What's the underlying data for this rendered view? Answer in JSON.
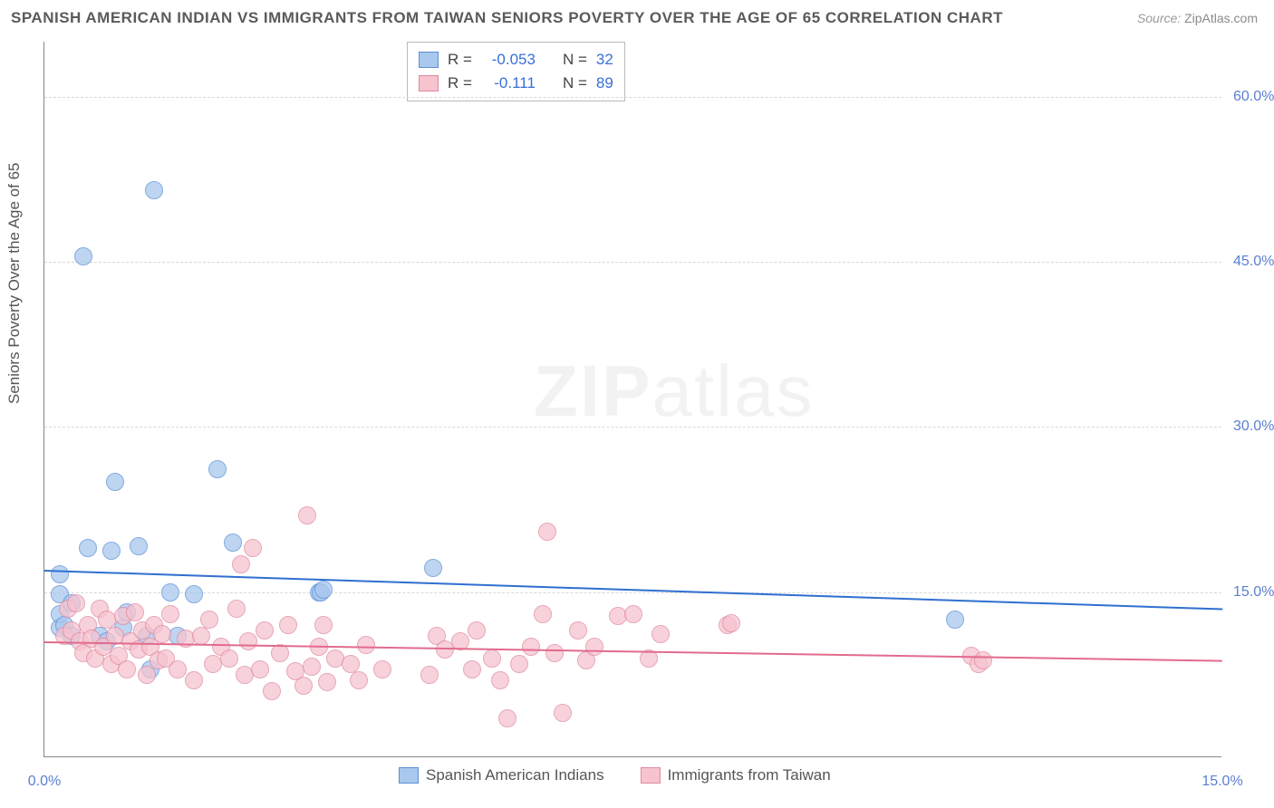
{
  "title": "SPANISH AMERICAN INDIAN VS IMMIGRANTS FROM TAIWAN SENIORS POVERTY OVER THE AGE OF 65 CORRELATION CHART",
  "source_label": "Source:",
  "source_value": "ZipAtlas.com",
  "y_axis_title": "Seniors Poverty Over the Age of 65",
  "watermark_a": "ZIP",
  "watermark_b": "atlas",
  "chart": {
    "type": "scatter",
    "background_color": "#ffffff",
    "grid_color": "#d8d8d8",
    "x_domain": [
      0,
      15
    ],
    "y_domain": [
      0,
      65
    ],
    "y_ticks": [
      15.0,
      30.0,
      45.0,
      60.0
    ],
    "y_tick_labels": [
      "15.0%",
      "30.0%",
      "45.0%",
      "60.0%"
    ],
    "x_left_label": "0.0%",
    "x_right_label": "15.0%",
    "marker_radius": 10,
    "series": [
      {
        "name": "Spanish American Indians",
        "color_fill": "#a9c8ee",
        "color_stroke": "#5a8fd6",
        "line_color": "#2f6fd0",
        "R": "-0.053",
        "N": "32",
        "trend": {
          "x1": 0,
          "y1": 17.0,
          "x2": 15,
          "y2": 13.5
        },
        "points": [
          [
            0.2,
            16.6
          ],
          [
            0.2,
            14.8
          ],
          [
            0.2,
            11.8
          ],
          [
            0.2,
            13.0
          ],
          [
            0.25,
            12.0
          ],
          [
            0.35,
            11.0
          ],
          [
            0.35,
            14.0
          ],
          [
            0.5,
            45.5
          ],
          [
            0.55,
            19.0
          ],
          [
            0.7,
            11.0
          ],
          [
            0.8,
            10.5
          ],
          [
            0.85,
            18.8
          ],
          [
            0.9,
            25.0
          ],
          [
            1.0,
            11.8
          ],
          [
            1.05,
            13.2
          ],
          [
            1.2,
            19.2
          ],
          [
            1.3,
            11.0
          ],
          [
            1.35,
            8.0
          ],
          [
            1.4,
            51.5
          ],
          [
            1.6,
            15.0
          ],
          [
            1.7,
            11.0
          ],
          [
            1.9,
            14.8
          ],
          [
            2.2,
            26.2
          ],
          [
            2.4,
            19.5
          ],
          [
            3.5,
            15.0
          ],
          [
            3.52,
            15.0
          ],
          [
            3.55,
            15.2
          ],
          [
            4.95,
            17.2
          ],
          [
            11.6,
            12.5
          ]
        ]
      },
      {
        "name": "Immigrants from Taiwan",
        "color_fill": "#f6c3cf",
        "color_stroke": "#e08aa0",
        "line_color": "#e26b8d",
        "R": "-0.111",
        "N": "89",
        "trend": {
          "x1": 0,
          "y1": 10.5,
          "x2": 15,
          "y2": 8.8
        },
        "points": [
          [
            0.25,
            11.0
          ],
          [
            0.3,
            13.5
          ],
          [
            0.35,
            11.5
          ],
          [
            0.4,
            14.0
          ],
          [
            0.45,
            10.5
          ],
          [
            0.5,
            9.5
          ],
          [
            0.55,
            12.0
          ],
          [
            0.6,
            10.8
          ],
          [
            0.65,
            9.0
          ],
          [
            0.7,
            13.5
          ],
          [
            0.75,
            10.0
          ],
          [
            0.8,
            12.5
          ],
          [
            0.85,
            8.5
          ],
          [
            0.9,
            11.0
          ],
          [
            0.95,
            9.2
          ],
          [
            1.0,
            12.8
          ],
          [
            1.05,
            8.0
          ],
          [
            1.1,
            10.5
          ],
          [
            1.15,
            13.2
          ],
          [
            1.2,
            9.8
          ],
          [
            1.25,
            11.5
          ],
          [
            1.3,
            7.5
          ],
          [
            1.35,
            10.0
          ],
          [
            1.4,
            12.0
          ],
          [
            1.45,
            8.8
          ],
          [
            1.5,
            11.2
          ],
          [
            1.55,
            9.0
          ],
          [
            1.6,
            13.0
          ],
          [
            1.7,
            8.0
          ],
          [
            1.8,
            10.8
          ],
          [
            1.9,
            7.0
          ],
          [
            2.0,
            11.0
          ],
          [
            2.1,
            12.5
          ],
          [
            2.15,
            8.5
          ],
          [
            2.25,
            10.0
          ],
          [
            2.35,
            9.0
          ],
          [
            2.45,
            13.5
          ],
          [
            2.5,
            17.5
          ],
          [
            2.55,
            7.5
          ],
          [
            2.6,
            10.5
          ],
          [
            2.65,
            19.0
          ],
          [
            2.75,
            8.0
          ],
          [
            2.8,
            11.5
          ],
          [
            2.9,
            6.0
          ],
          [
            3.0,
            9.5
          ],
          [
            3.1,
            12.0
          ],
          [
            3.2,
            7.8
          ],
          [
            3.3,
            6.5
          ],
          [
            3.35,
            22.0
          ],
          [
            3.4,
            8.2
          ],
          [
            3.5,
            10.0
          ],
          [
            3.55,
            12.0
          ],
          [
            3.6,
            6.8
          ],
          [
            3.7,
            9.0
          ],
          [
            3.9,
            8.5
          ],
          [
            4.0,
            7.0
          ],
          [
            4.1,
            10.2
          ],
          [
            4.3,
            8.0
          ],
          [
            4.9,
            7.5
          ],
          [
            5.0,
            11.0
          ],
          [
            5.1,
            9.8
          ],
          [
            5.3,
            10.5
          ],
          [
            5.45,
            8.0
          ],
          [
            5.5,
            11.5
          ],
          [
            5.7,
            9.0
          ],
          [
            5.8,
            7.0
          ],
          [
            5.9,
            3.5
          ],
          [
            6.05,
            8.5
          ],
          [
            6.2,
            10.0
          ],
          [
            6.35,
            13.0
          ],
          [
            6.4,
            20.5
          ],
          [
            6.5,
            9.5
          ],
          [
            6.6,
            4.0
          ],
          [
            6.8,
            11.5
          ],
          [
            6.9,
            8.8
          ],
          [
            7.0,
            10.0
          ],
          [
            7.3,
            12.8
          ],
          [
            7.5,
            13.0
          ],
          [
            7.7,
            9.0
          ],
          [
            7.85,
            11.2
          ],
          [
            8.7,
            12.0
          ],
          [
            8.75,
            12.2
          ],
          [
            11.8,
            9.2
          ],
          [
            11.9,
            8.5
          ],
          [
            11.95,
            8.8
          ]
        ]
      }
    ]
  },
  "stats_legend": {
    "R_label": "R =",
    "N_label": "N ="
  },
  "bottom_legend": {
    "items": [
      "Spanish American Indians",
      "Immigrants from Taiwan"
    ]
  }
}
